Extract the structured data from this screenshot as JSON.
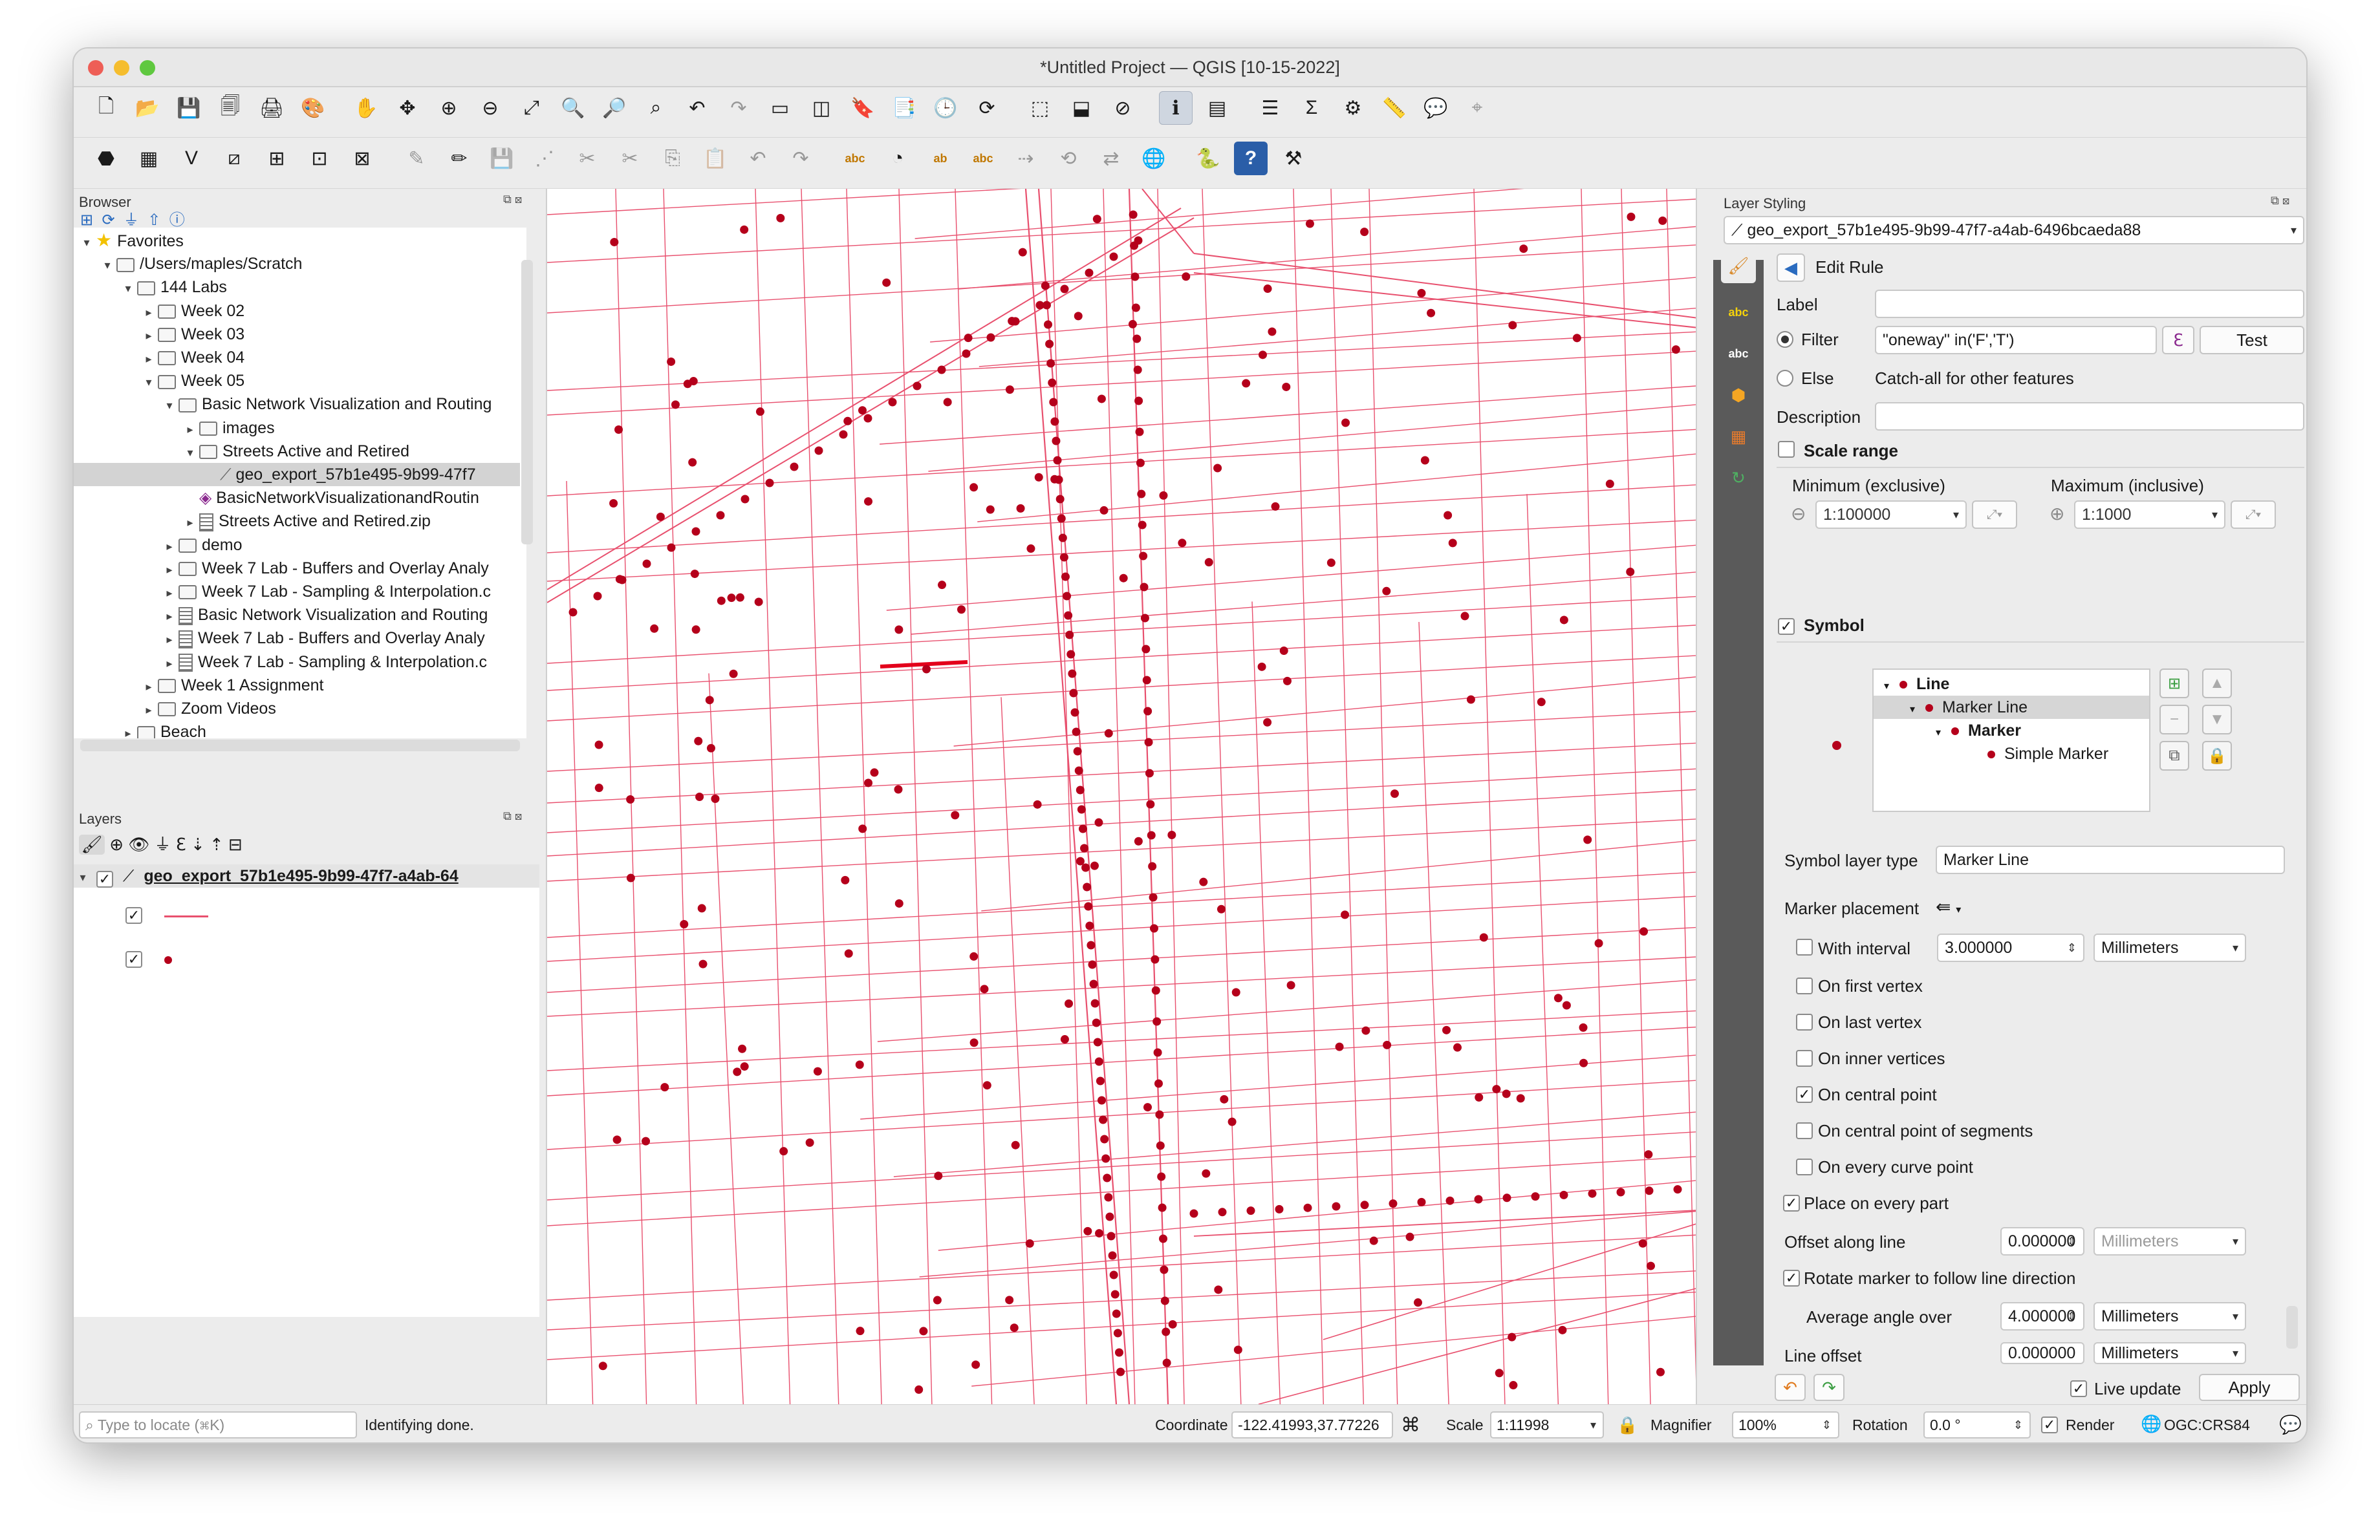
{
  "window": {
    "title": "*Untitled Project — QGIS [10-15-2022]",
    "traffic_colors": [
      "#ee5e56",
      "#f5bd2e",
      "#5fc83f"
    ]
  },
  "toolbar1_icons": [
    "new-project-icon",
    "open-project-icon",
    "save-project-icon",
    "save-as-icon",
    "print-layout-icon",
    "style-manager-icon",
    "pan-icon",
    "pan-to-selection-icon",
    "zoom-in-icon",
    "zoom-out-icon",
    "zoom-full-icon",
    "zoom-to-selection-icon",
    "zoom-to-layer-icon",
    "zoom-native-icon",
    "zoom-last-icon",
    "zoom-next-icon",
    "new-map-view-icon",
    "new-3d-view-icon",
    "new-bookmark-icon",
    "show-bookmarks-icon",
    "temporal-controller-icon",
    "refresh-icon",
    "select-features-icon",
    "select-by-value-icon",
    "deselect-icon",
    "identify-features-icon",
    "measure-icon",
    "open-attribute-table-icon",
    "statistical-summary-icon",
    "field-calculator-icon",
    "measure-line-icon",
    "annotation-icon",
    "gps-icon"
  ],
  "toolbar2_icons": [
    "add-vector-icon",
    "add-raster-icon",
    "add-delimited-text-icon",
    "add-spatialite-icon",
    "add-wms-icon",
    "add-wcs-icon",
    "add-wfs-icon",
    "toggle-editing-icon",
    "pencil-icon",
    "save-edits-icon",
    "digitize-icon",
    "vertex-tool-icon",
    "cut-icon",
    "copy-icon",
    "paste-icon",
    "undo-icon",
    "redo-icon",
    "label-tool-icon",
    "diagram-tool-icon",
    "pin-label-icon",
    "highlight-label-icon",
    "move-label-icon",
    "rotate-label-icon",
    "change-label-icon",
    "metasearch-icon",
    "python-console-icon",
    "help-icon",
    "processing-icon"
  ],
  "browser": {
    "title": "Browser",
    "items": [
      {
        "label": "Favorites",
        "kind": "star",
        "depth": 0,
        "arrow": "▾"
      },
      {
        "label": "/Users/maples/Scratch",
        "kind": "folder",
        "depth": 1,
        "arrow": "▾"
      },
      {
        "label": "144 Labs",
        "kind": "folder",
        "depth": 2,
        "arrow": "▾"
      },
      {
        "label": "Week 02",
        "kind": "folder",
        "depth": 3,
        "arrow": "▸"
      },
      {
        "label": "Week 03",
        "kind": "folder",
        "depth": 3,
        "arrow": "▸"
      },
      {
        "label": "Week 04",
        "kind": "folder",
        "depth": 3,
        "arrow": "▸"
      },
      {
        "label": "Week 05",
        "kind": "folder",
        "depth": 3,
        "arrow": "▾"
      },
      {
        "label": "Basic Network Visualization and Routing",
        "kind": "folder",
        "depth": 4,
        "arrow": "▾"
      },
      {
        "label": "images",
        "kind": "folder",
        "depth": 5,
        "arrow": "▸"
      },
      {
        "label": "Streets Active and Retired",
        "kind": "folder",
        "depth": 5,
        "arrow": "▾"
      },
      {
        "label": "geo_export_57b1e495-9b99-47f7",
        "kind": "line",
        "depth": 6,
        "arrow": ""
      },
      {
        "label": "BasicNetworkVisualizationandRoutin",
        "kind": "qgs",
        "depth": 5,
        "arrow": ""
      },
      {
        "label": "Streets Active and Retired.zip",
        "kind": "zip",
        "depth": 5,
        "arrow": "▸"
      },
      {
        "label": "demo",
        "kind": "folder",
        "depth": 4,
        "arrow": "▸"
      },
      {
        "label": "Week 7 Lab - Buffers and Overlay Analy",
        "kind": "folder",
        "depth": 4,
        "arrow": "▸"
      },
      {
        "label": "Week 7 Lab - Sampling & Interpolation.c",
        "kind": "folder",
        "depth": 4,
        "arrow": "▸"
      },
      {
        "label": "Basic Network Visualization and Routing",
        "kind": "zip",
        "depth": 4,
        "arrow": "▸"
      },
      {
        "label": "Week 7 Lab - Buffers and Overlay Analy",
        "kind": "zip",
        "depth": 4,
        "arrow": "▸"
      },
      {
        "label": "Week 7 Lab - Sampling & Interpolation.c",
        "kind": "zip",
        "depth": 4,
        "arrow": "▸"
      },
      {
        "label": "Week 1 Assignment",
        "kind": "folder",
        "depth": 3,
        "arrow": "▸"
      },
      {
        "label": "Zoom Videos",
        "kind": "folder",
        "depth": 3,
        "arrow": "▸"
      },
      {
        "label": "Beach",
        "kind": "folder",
        "depth": 2,
        "arrow": "▸"
      }
    ]
  },
  "layers": {
    "title": "Layers",
    "layer_name": "geo_export_57b1e495-9b99-47f7-a4ab-64"
  },
  "styling": {
    "title": "Layer Styling",
    "layer_select": "geo_export_57b1e495-9b99-47f7-a4ab-6496bcaeda88",
    "edit_rule": "Edit Rule",
    "label_label": "Label",
    "label_value": "",
    "filter_label": "Filter",
    "filter_value": "\"oneway\" in('F','T')",
    "test_button": "Test",
    "else_label": "Else",
    "else_desc": "Catch-all for other features",
    "description_label": "Description",
    "description_value": "",
    "scale_range_label": "Scale range",
    "min_label": "Minimum (exclusive)",
    "max_label": "Maximum (inclusive)",
    "min_value": "1:100000",
    "max_value": "1:1000",
    "symbol_label": "Symbol",
    "symbol_tree": [
      "Line",
      "Marker Line",
      "Marker",
      "Simple Marker"
    ],
    "symbol_layer_type_label": "Symbol layer type",
    "symbol_layer_type_value": "Marker Line",
    "marker_placement_label": "Marker placement",
    "with_interval_label": "With interval",
    "interval_value": "3.000000",
    "interval_unit": "Millimeters",
    "on_first_vertex": "On first vertex",
    "on_last_vertex": "On last vertex",
    "on_inner_vertices": "On inner vertices",
    "on_central_point": "On central point",
    "on_central_point_segments": "On central point of segments",
    "on_every_curve_point": "On every curve point",
    "place_on_every_part": "Place on every part",
    "offset_along_line_label": "Offset along line",
    "offset_along_value": "0.000000",
    "offset_along_unit": "Millimeters",
    "rotate_marker_label": "Rotate marker to follow line direction",
    "average_angle_label": "Average angle over",
    "average_angle_value": "4.000000",
    "average_angle_unit": "Millimeters",
    "line_offset_label": "Line offset",
    "line_offset_value": "0.000000",
    "line_offset_unit": "Millimeters",
    "live_update_label": "Live update",
    "apply_button": "Apply",
    "marker_color": "#b5001b",
    "line_color": "#e8506e"
  },
  "statusbar": {
    "locator_placeholder": "Type to locate (⌘K)",
    "message": "Identifying done.",
    "coordinate_label": "Coordinate",
    "coordinate_value": "-122.41993,37.77226",
    "scale_label": "Scale",
    "scale_value": "1:11998",
    "magnifier_label": "Magnifier",
    "magnifier_value": "100%",
    "rotation_label": "Rotation",
    "rotation_value": "0.0 °",
    "render_label": "Render",
    "crs_label": "OGC:CRS84"
  }
}
